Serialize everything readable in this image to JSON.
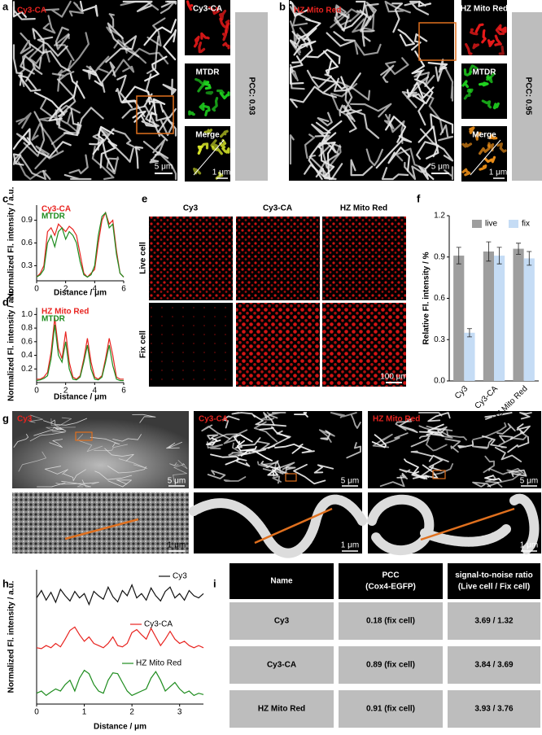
{
  "panels": {
    "a": {
      "label": "a",
      "title": "Cy3-CA",
      "insets": [
        "Cy3-CA",
        "MTDR",
        "Merge"
      ],
      "scale_main": "5 μm",
      "scale_inset": "1 μm",
      "pcc": "PCC: 0.93"
    },
    "b": {
      "label": "b",
      "title": "HZ Mito Red",
      "insets": [
        "HZ Mito Red",
        "MTDR",
        "Merge"
      ],
      "scale_main": "5 μm",
      "scale_inset": "1 μm",
      "pcc": "PCC: 0.95"
    },
    "e": {
      "label": "e",
      "columns": [
        "Cy3",
        "Cy3-CA",
        "HZ Mito Red"
      ],
      "rows": [
        "Live cell",
        "Fix cell"
      ],
      "scale": "100 μm"
    },
    "g": {
      "label": "g",
      "titles": [
        "Cy3",
        "Cy3-CA",
        "HZ Mito Red"
      ],
      "scales_main": [
        "5 μm",
        "5 μm",
        "5 μm"
      ],
      "scales_zoom": [
        "1 μm",
        "1 μm",
        "1 μm"
      ]
    }
  },
  "chart_data": [
    {
      "type": "line",
      "panel_label": "c",
      "xlabel": "Distance / μm",
      "ylabel": "Normalized Fl. intensity / a.u.",
      "x": [
        0,
        0.25,
        0.5,
        0.75,
        1,
        1.25,
        1.5,
        1.75,
        2,
        2.25,
        2.5,
        2.75,
        3,
        3.25,
        3.5,
        3.75,
        4,
        4.25,
        4.5,
        4.75,
        5,
        5.25,
        5.5,
        5.75,
        6
      ],
      "series": [
        {
          "name": "Cy3-CA",
          "color": "#e8231f",
          "values": [
            0.15,
            0.2,
            0.3,
            0.75,
            0.8,
            0.7,
            0.85,
            0.8,
            0.75,
            0.82,
            0.78,
            0.7,
            0.45,
            0.2,
            0.15,
            0.2,
            0.25,
            0.6,
            0.9,
            1.0,
            0.85,
            0.9,
            0.5,
            0.2,
            0.15
          ]
        },
        {
          "name": "MTDR",
          "color": "#1e8c1e",
          "values": [
            0.15,
            0.18,
            0.25,
            0.6,
            0.7,
            0.55,
            0.75,
            0.8,
            0.65,
            0.75,
            0.7,
            0.6,
            0.35,
            0.18,
            0.15,
            0.18,
            0.3,
            0.7,
            0.95,
            1.0,
            0.8,
            0.85,
            0.45,
            0.2,
            0.15
          ]
        }
      ],
      "xlim": [
        0,
        6
      ],
      "xticks": [
        0,
        2,
        4,
        6
      ],
      "ylim": [
        0.1,
        1.1
      ],
      "yticks": [
        0.3,
        0.6,
        0.9
      ]
    },
    {
      "type": "line",
      "panel_label": "d",
      "xlabel": "Distance / μm",
      "ylabel": "Normalized Fl. intensity / a.u.",
      "x": [
        0,
        0.25,
        0.5,
        0.75,
        1,
        1.25,
        1.5,
        1.75,
        2,
        2.25,
        2.5,
        2.75,
        3,
        3.25,
        3.5,
        3.75,
        4,
        4.25,
        4.5,
        4.75,
        5,
        5.25,
        5.5,
        5.75,
        6
      ],
      "series": [
        {
          "name": "HZ Mito Red",
          "color": "#e8231f",
          "values": [
            0.05,
            0.05,
            0.08,
            0.15,
            0.45,
            0.95,
            0.5,
            0.35,
            0.75,
            0.3,
            0.08,
            0.05,
            0.1,
            0.35,
            0.65,
            0.3,
            0.08,
            0.05,
            0.1,
            0.35,
            0.65,
            0.4,
            0.08,
            0.05,
            0.05
          ]
        },
        {
          "name": "MTDR",
          "color": "#1e8c1e",
          "values": [
            0.03,
            0.04,
            0.06,
            0.1,
            0.35,
            0.85,
            0.4,
            0.3,
            0.6,
            0.2,
            0.05,
            0.04,
            0.08,
            0.3,
            0.55,
            0.2,
            0.05,
            0.04,
            0.08,
            0.3,
            0.55,
            0.25,
            0.05,
            0.03,
            0.03
          ]
        }
      ],
      "xlim": [
        0,
        6
      ],
      "xticks": [
        0,
        2,
        4,
        6
      ],
      "ylim": [
        0,
        1.1
      ],
      "yticks": [
        0.2,
        0.4,
        0.6,
        0.8,
        {
          "value": 1,
          "label": "1.0"
        }
      ]
    },
    {
      "type": "bar",
      "panel_label": "f",
      "ylabel": "Relative Fl. intensity / %",
      "categories": [
        "Cy3",
        "Cy3-CA",
        "HZ Mito Red"
      ],
      "series": [
        {
          "name": "live",
          "color": "#9e9e9e",
          "values": [
            0.91,
            0.94,
            0.96
          ],
          "errors": [
            0.06,
            0.07,
            0.04
          ]
        },
        {
          "name": "fix",
          "color": "#c5dcf5",
          "values": [
            0.35,
            0.91,
            0.89
          ],
          "errors": [
            0.03,
            0.06,
            0.05
          ]
        }
      ],
      "ylim": [
        0,
        1.2
      ],
      "yticks": [
        {
          "value": 0,
          "label": "0.0"
        },
        0.3,
        0.6,
        0.9,
        1.2
      ]
    },
    {
      "type": "line",
      "panel_label": "h",
      "xlabel": "Distance / μm",
      "ylabel": "Normalized Fl. intensity / a.u.",
      "x": [
        0,
        0.1,
        0.2,
        0.3,
        0.4,
        0.5,
        0.6,
        0.7,
        0.8,
        0.9,
        1,
        1.1,
        1.2,
        1.3,
        1.4,
        1.5,
        1.6,
        1.7,
        1.8,
        1.9,
        2,
        2.1,
        2.2,
        2.3,
        2.4,
        2.5,
        2.6,
        2.7,
        2.8,
        2.9,
        3,
        3.1,
        3.2,
        3.3,
        3.4,
        3.5
      ],
      "series": [
        {
          "name": "Cy3",
          "color": "#111111",
          "values": [
            2.45,
            2.62,
            2.4,
            2.58,
            2.35,
            2.65,
            2.5,
            2.38,
            2.6,
            2.45,
            2.55,
            2.3,
            2.6,
            2.5,
            2.42,
            2.7,
            2.48,
            2.36,
            2.62,
            2.5,
            2.75,
            2.45,
            2.55,
            2.4,
            2.68,
            2.5,
            2.38,
            2.6,
            2.7,
            2.45,
            2.55,
            2.4,
            2.62,
            2.5,
            2.45,
            2.55
          ]
        },
        {
          "name": "Cy3-CA",
          "color": "#e8231f",
          "values": [
            1.3,
            1.28,
            1.35,
            1.3,
            1.4,
            1.32,
            1.5,
            1.7,
            1.78,
            1.6,
            1.45,
            1.55,
            1.4,
            1.35,
            1.3,
            1.4,
            1.55,
            1.35,
            1.32,
            1.4,
            1.65,
            1.72,
            1.6,
            1.5,
            1.75,
            1.55,
            1.35,
            1.5,
            1.68,
            1.5,
            1.4,
            1.45,
            1.35,
            1.3,
            1.35,
            1.3
          ]
        },
        {
          "name": "HZ Mito Red",
          "color": "#1e8c1e",
          "values": [
            0.25,
            0.3,
            0.2,
            0.28,
            0.35,
            0.3,
            0.45,
            0.55,
            0.3,
            0.6,
            0.78,
            0.7,
            0.45,
            0.3,
            0.25,
            0.55,
            0.72,
            0.7,
            0.5,
            0.3,
            0.2,
            0.25,
            0.3,
            0.35,
            0.6,
            0.75,
            0.55,
            0.3,
            0.4,
            0.5,
            0.35,
            0.25,
            0.3,
            0.2,
            0.25,
            0.22
          ]
        }
      ],
      "xlim": [
        0,
        3.5
      ],
      "xticks": [
        0,
        1,
        2,
        3
      ],
      "ylim": [
        0,
        3.1
      ]
    }
  ],
  "table": {
    "label": "i",
    "header": [
      [
        "Name"
      ],
      [
        "PCC",
        "(Cox4-EGFP)"
      ],
      [
        "signal-to-noise ratio",
        "(Live cell / Fix cell)"
      ]
    ],
    "rows": [
      [
        "Cy3",
        "0.18 (fix cell)",
        "3.69 / 1.32"
      ],
      [
        "Cy3-CA",
        "0.89 (fix cell)",
        "3.84 / 3.69"
      ],
      [
        "HZ Mito Red",
        "0.91 (fix cell)",
        "3.93 / 3.76"
      ]
    ]
  }
}
